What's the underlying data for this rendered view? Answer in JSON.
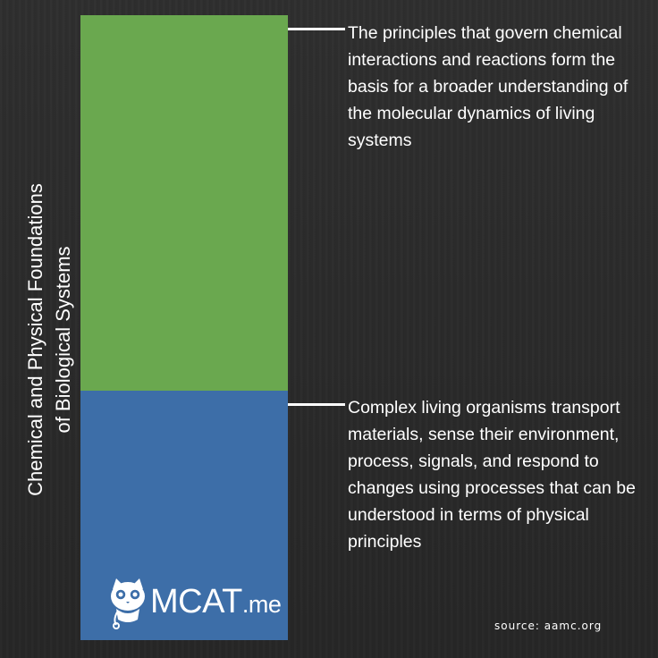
{
  "vertical_title": "Chemical and Physical Foundations\nof Biological Systems",
  "colors": {
    "green": "#6aa84f",
    "blue": "#3d6ea8",
    "background": "#2b2b2b",
    "text": "#ffffff"
  },
  "sections": [
    {
      "color": "green",
      "description": "The principles that govern chemical interactions and reactions form the basis for a broader understanding of the molecular dynamics of living systems"
    },
    {
      "color": "blue",
      "description": "Complex living organisms transport materials, sense their environment, process, signals, and respond to changes using processes that can be understood in terms of physical principles"
    }
  ],
  "logo": {
    "main": "MCAT",
    "suffix": ".me"
  },
  "source": "source: aamc.org"
}
